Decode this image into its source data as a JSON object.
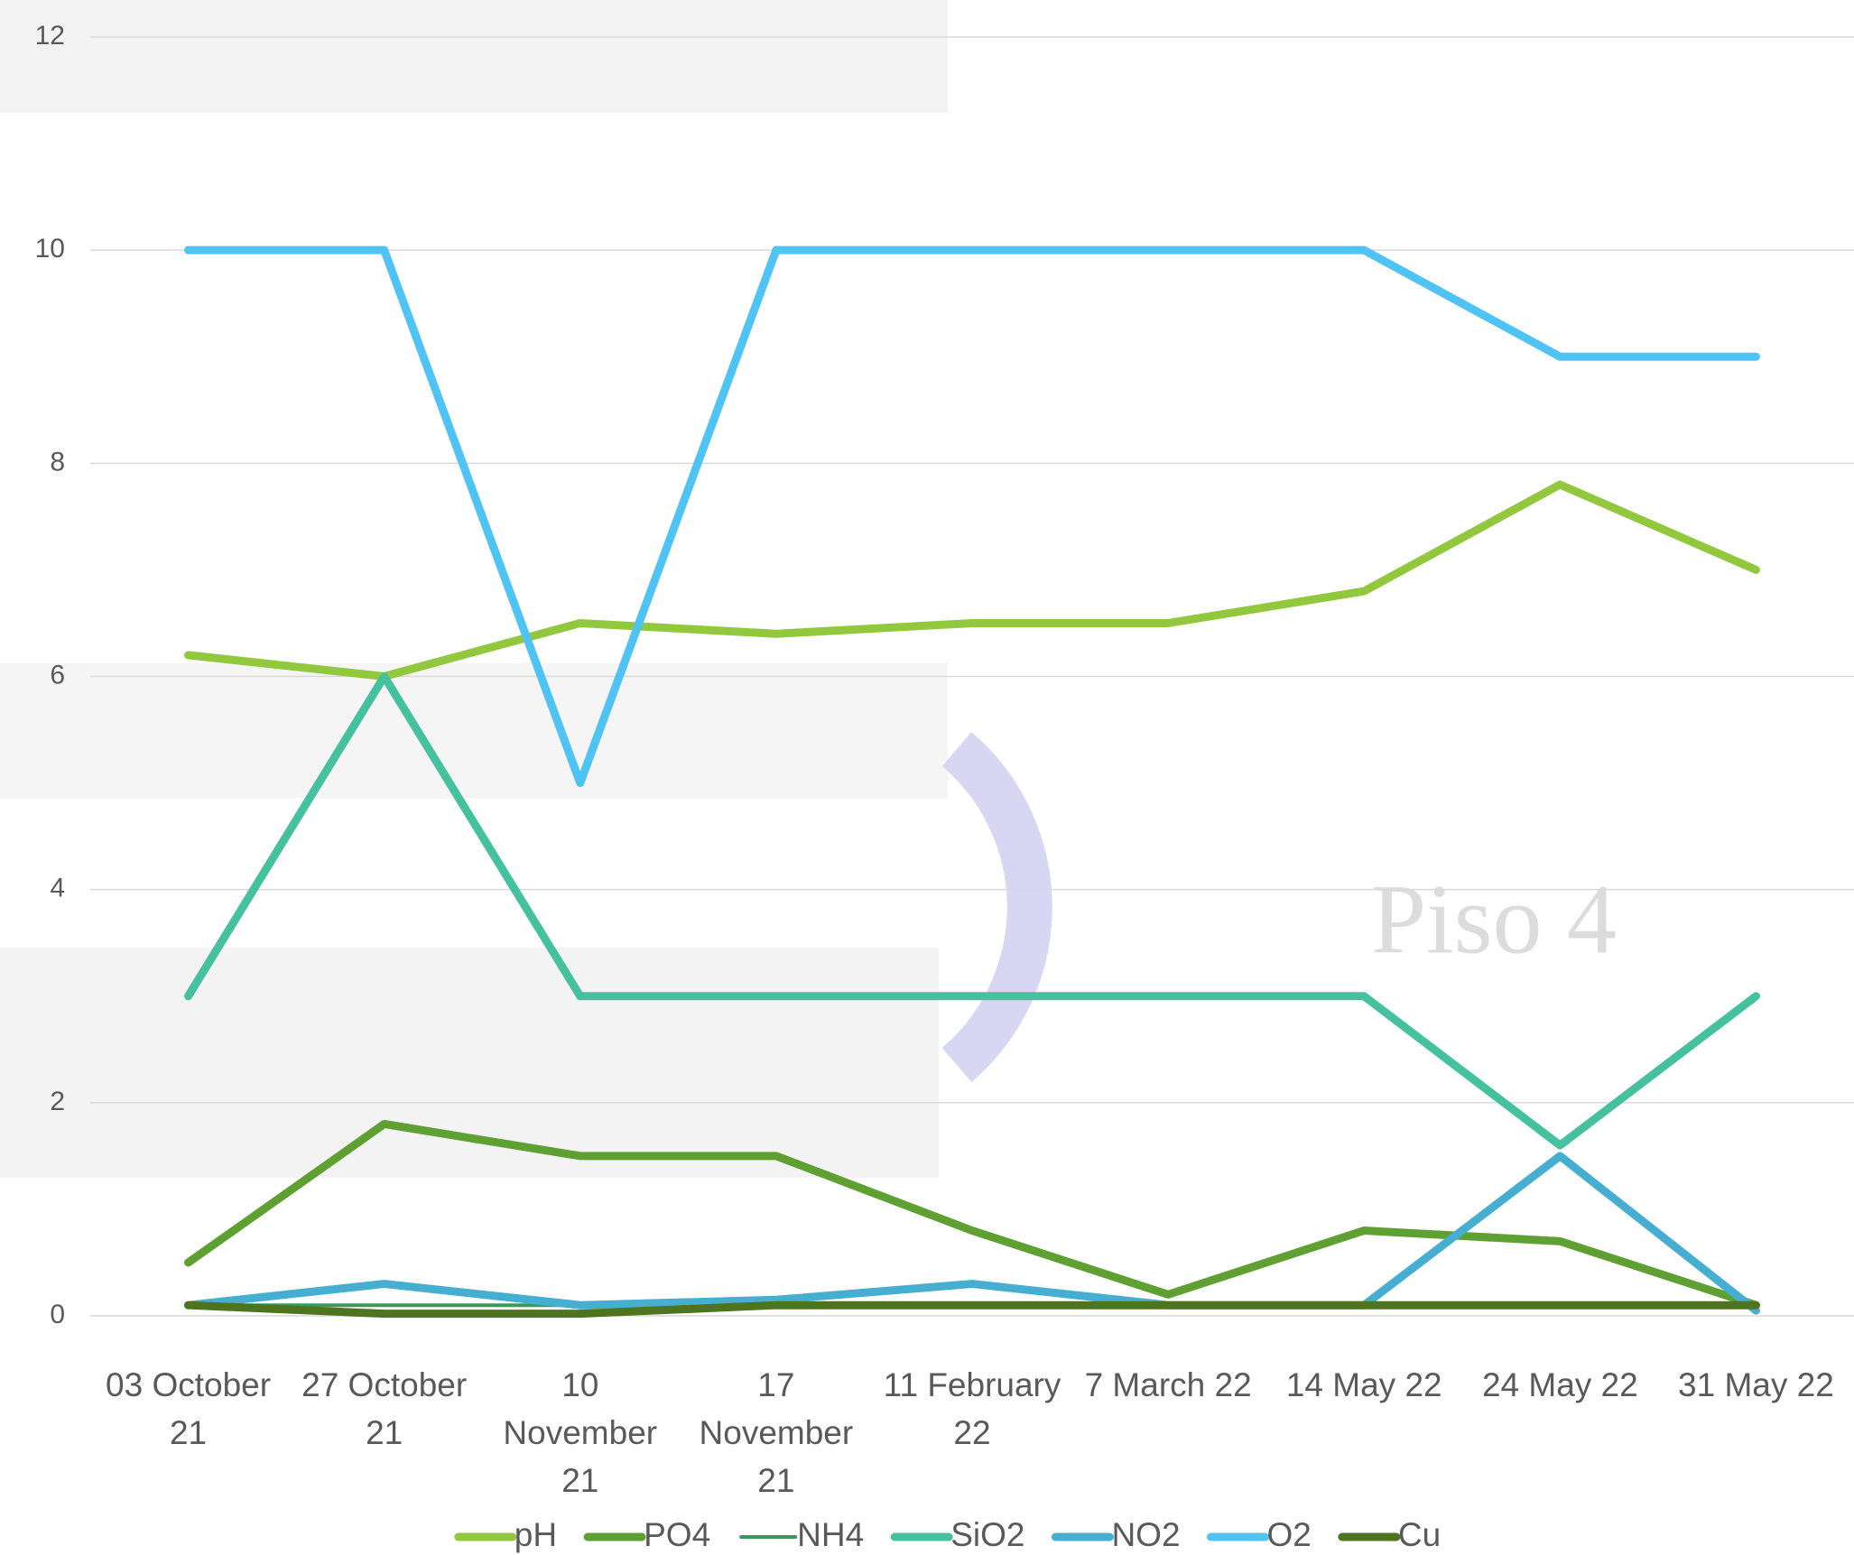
{
  "chart_data": {
    "type": "line",
    "watermark": "Piso 4",
    "categories": [
      "03 October 21",
      "27 October 21",
      "10 November 21",
      "17 November 21",
      "11 February 22",
      "7 March 22",
      "14 May 22",
      "24 May 22",
      "31 May 22"
    ],
    "series": [
      {
        "name": "pH",
        "color": "#92c83e",
        "width": 9,
        "values": [
          6.2,
          6.0,
          6.5,
          6.4,
          6.5,
          6.5,
          6.8,
          7.8,
          7.0
        ]
      },
      {
        "name": "PO4",
        "color": "#5fa033",
        "width": 9,
        "values": [
          0.5,
          1.8,
          1.5,
          1.5,
          0.8,
          0.2,
          0.8,
          0.7,
          0.1
        ]
      },
      {
        "name": "NH4",
        "color": "#3a9a5c",
        "width": 4,
        "values": [
          0.1,
          0.1,
          0.1,
          0.1,
          0.1,
          0.1,
          0.1,
          0.1,
          0.1
        ]
      },
      {
        "name": "SiO2",
        "color": "#45c19f",
        "width": 9,
        "values": [
          3,
          6,
          3,
          3,
          3,
          3,
          3,
          1.6,
          3
        ]
      },
      {
        "name": "NO2",
        "color": "#46aed0",
        "width": 9,
        "values": [
          0.1,
          0.3,
          0.1,
          0.15,
          0.3,
          0.1,
          0.1,
          1.5,
          0.05
        ]
      },
      {
        "name": "O2",
        "color": "#4fc3f4",
        "width": 9,
        "values": [
          10,
          10,
          5,
          10,
          10,
          10,
          10,
          9,
          9
        ]
      },
      {
        "name": "Cu",
        "color": "#4e7420",
        "width": 9,
        "values": [
          0.1,
          0.02,
          0.02,
          0.1,
          0.1,
          0.1,
          0.1,
          0.1,
          0.1
        ]
      }
    ],
    "ylim": [
      0,
      12
    ],
    "yticks": [
      0,
      2,
      4,
      6,
      8,
      10,
      12
    ],
    "grid": true,
    "legend": "bottom"
  }
}
